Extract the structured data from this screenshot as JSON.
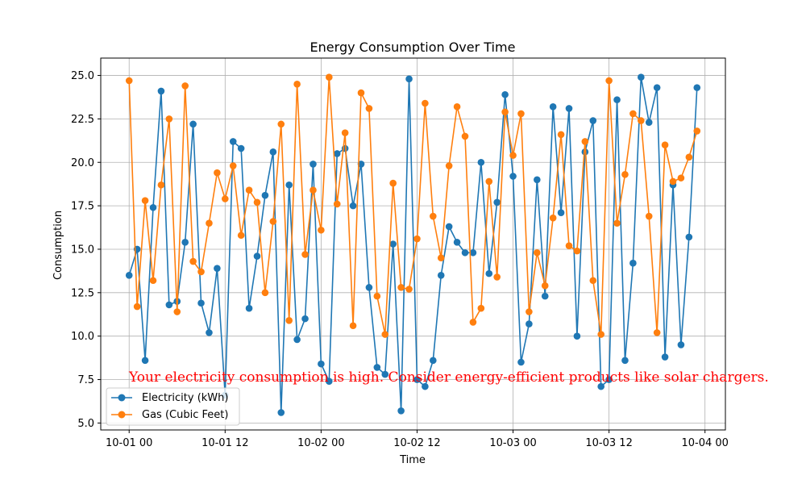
{
  "chart_data": {
    "type": "line",
    "title": "Energy Consumption Over Time",
    "xlabel": "Time",
    "ylabel": "Consumption",
    "grid": true,
    "legend_position": "lower-left",
    "x_start": "10-01 00",
    "x_step_hours": 1,
    "xlim": [
      "2023-10-01 00",
      "2023-10-04 00"
    ],
    "x_tick_labels": [
      "10-01 00",
      "10-01 12",
      "10-02 00",
      "10-02 12",
      "10-03 00",
      "10-03 12",
      "10-04 00"
    ],
    "ylim": [
      5.0,
      25.0
    ],
    "y_ticks": [
      "5.0",
      "7.5",
      "10.0",
      "12.5",
      "15.0",
      "17.5",
      "20.0",
      "22.5",
      "25.0"
    ],
    "annotation": "Your electricity consumption is high. Consider energy-efficient products like solar chargers.",
    "annotation_color": "#ff0000",
    "series": [
      {
        "name": "Electricity (kWh)",
        "color": "#1f77b4",
        "values": [
          13.5,
          15.0,
          8.6,
          17.4,
          24.1,
          11.8,
          12.0,
          15.4,
          22.2,
          11.9,
          10.2,
          13.9,
          6.6,
          21.2,
          20.8,
          11.6,
          14.6,
          18.1,
          20.6,
          5.6,
          18.7,
          9.8,
          11.0,
          19.9,
          8.4,
          7.4,
          20.5,
          20.8,
          17.5,
          19.9,
          12.8,
          8.2,
          7.8,
          15.3,
          5.7,
          24.8,
          7.5,
          7.1,
          8.6,
          13.5,
          16.3,
          15.4,
          14.8,
          14.8,
          20.0,
          13.6,
          17.7,
          23.9,
          19.2,
          8.5,
          10.7,
          19.0,
          12.3,
          23.2,
          17.1,
          23.1,
          10.0,
          20.6,
          22.4,
          7.1,
          7.5,
          23.6,
          8.6,
          14.2,
          24.9,
          22.3,
          24.3,
          8.8,
          18.7,
          9.5,
          15.7,
          24.3
        ]
      },
      {
        "name": "Gas (Cubic Feet)",
        "color": "#ff7f0e",
        "values": [
          24.7,
          11.7,
          17.8,
          13.2,
          18.7,
          22.5,
          11.4,
          24.4,
          14.3,
          13.7,
          16.5,
          19.4,
          17.9,
          19.8,
          15.8,
          18.4,
          17.7,
          12.5,
          16.6,
          22.2,
          10.9,
          24.5,
          14.7,
          18.4,
          16.1,
          24.9,
          17.6,
          21.7,
          10.6,
          24.0,
          23.1,
          12.3,
          10.1,
          18.8,
          12.8,
          12.7,
          15.6,
          23.4,
          16.9,
          14.5,
          19.8,
          23.2,
          21.5,
          10.8,
          11.6,
          18.9,
          13.4,
          22.9,
          20.4,
          22.8,
          11.4,
          14.8,
          12.9,
          16.8,
          21.6,
          15.2,
          14.9,
          21.2,
          13.2,
          10.1,
          24.7,
          16.5,
          19.3,
          22.8,
          22.4,
          16.9,
          10.2,
          21.0,
          18.9,
          19.1,
          20.3,
          21.8
        ]
      }
    ]
  }
}
